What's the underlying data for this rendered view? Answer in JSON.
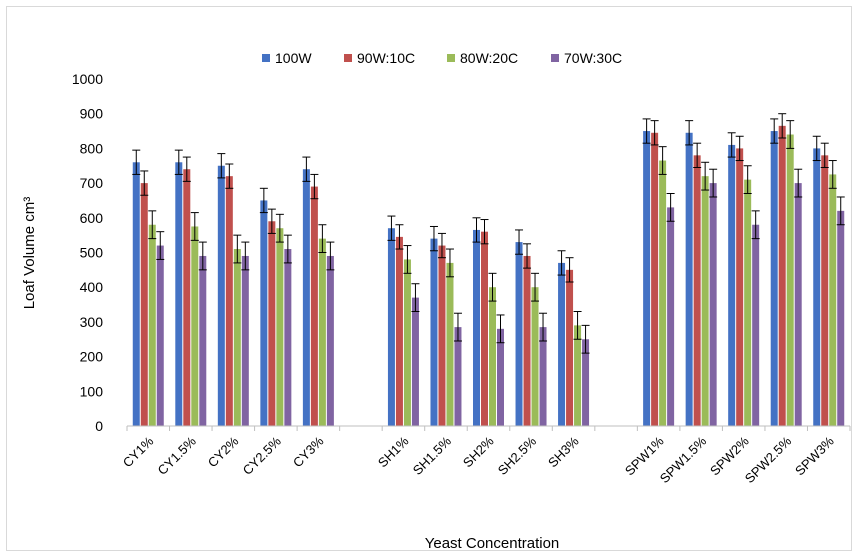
{
  "chart_data": {
    "type": "bar",
    "title": "",
    "xlabel": "Yeast Concentration",
    "ylabel": "Loaf Volume cm³",
    "ylim": [
      0,
      1000
    ],
    "yticks": [
      0,
      100,
      200,
      300,
      400,
      500,
      600,
      700,
      800,
      900,
      1000
    ],
    "grid": false,
    "legend_position": "top",
    "error_bars": true,
    "groups": [
      [
        "CY1%",
        "CY1.5%",
        "CY2%",
        "CY2.5%",
        "CY3%"
      ],
      [
        "SH1%",
        "SH1.5%",
        "SH2%",
        "SH2.5%",
        "SH3%"
      ],
      [
        "SPW1%",
        "SPW1.5%",
        "SPW2%",
        "SPW2.5%",
        "SPW3%"
      ]
    ],
    "series": [
      {
        "name": "100W",
        "color": "#4472C4",
        "values": [
          760,
          760,
          750,
          650,
          740,
          570,
          540,
          565,
          530,
          470,
          850,
          845,
          810,
          850,
          800
        ],
        "errors": [
          35,
          35,
          35,
          35,
          35,
          35,
          35,
          35,
          35,
          35,
          35,
          35,
          35,
          35,
          35
        ]
      },
      {
        "name": "90W:10C",
        "color": "#C0504D",
        "values": [
          700,
          740,
          720,
          590,
          690,
          545,
          520,
          560,
          490,
          450,
          845,
          780,
          800,
          865,
          780
        ],
        "errors": [
          35,
          35,
          35,
          35,
          35,
          35,
          35,
          35,
          35,
          35,
          35,
          35,
          35,
          35,
          35
        ]
      },
      {
        "name": "80W:20C",
        "color": "#9BBB59",
        "values": [
          580,
          575,
          510,
          570,
          540,
          480,
          470,
          400,
          400,
          290,
          765,
          720,
          710,
          840,
          725
        ],
        "errors": [
          40,
          40,
          40,
          40,
          40,
          40,
          40,
          40,
          40,
          40,
          40,
          40,
          40,
          40,
          40
        ]
      },
      {
        "name": "70W:30C",
        "color": "#8064A2",
        "values": [
          520,
          490,
          490,
          510,
          490,
          370,
          285,
          280,
          285,
          250,
          630,
          700,
          580,
          700,
          620
        ],
        "errors": [
          40,
          40,
          40,
          40,
          40,
          40,
          40,
          40,
          40,
          40,
          40,
          40,
          40,
          40,
          40
        ]
      }
    ]
  }
}
